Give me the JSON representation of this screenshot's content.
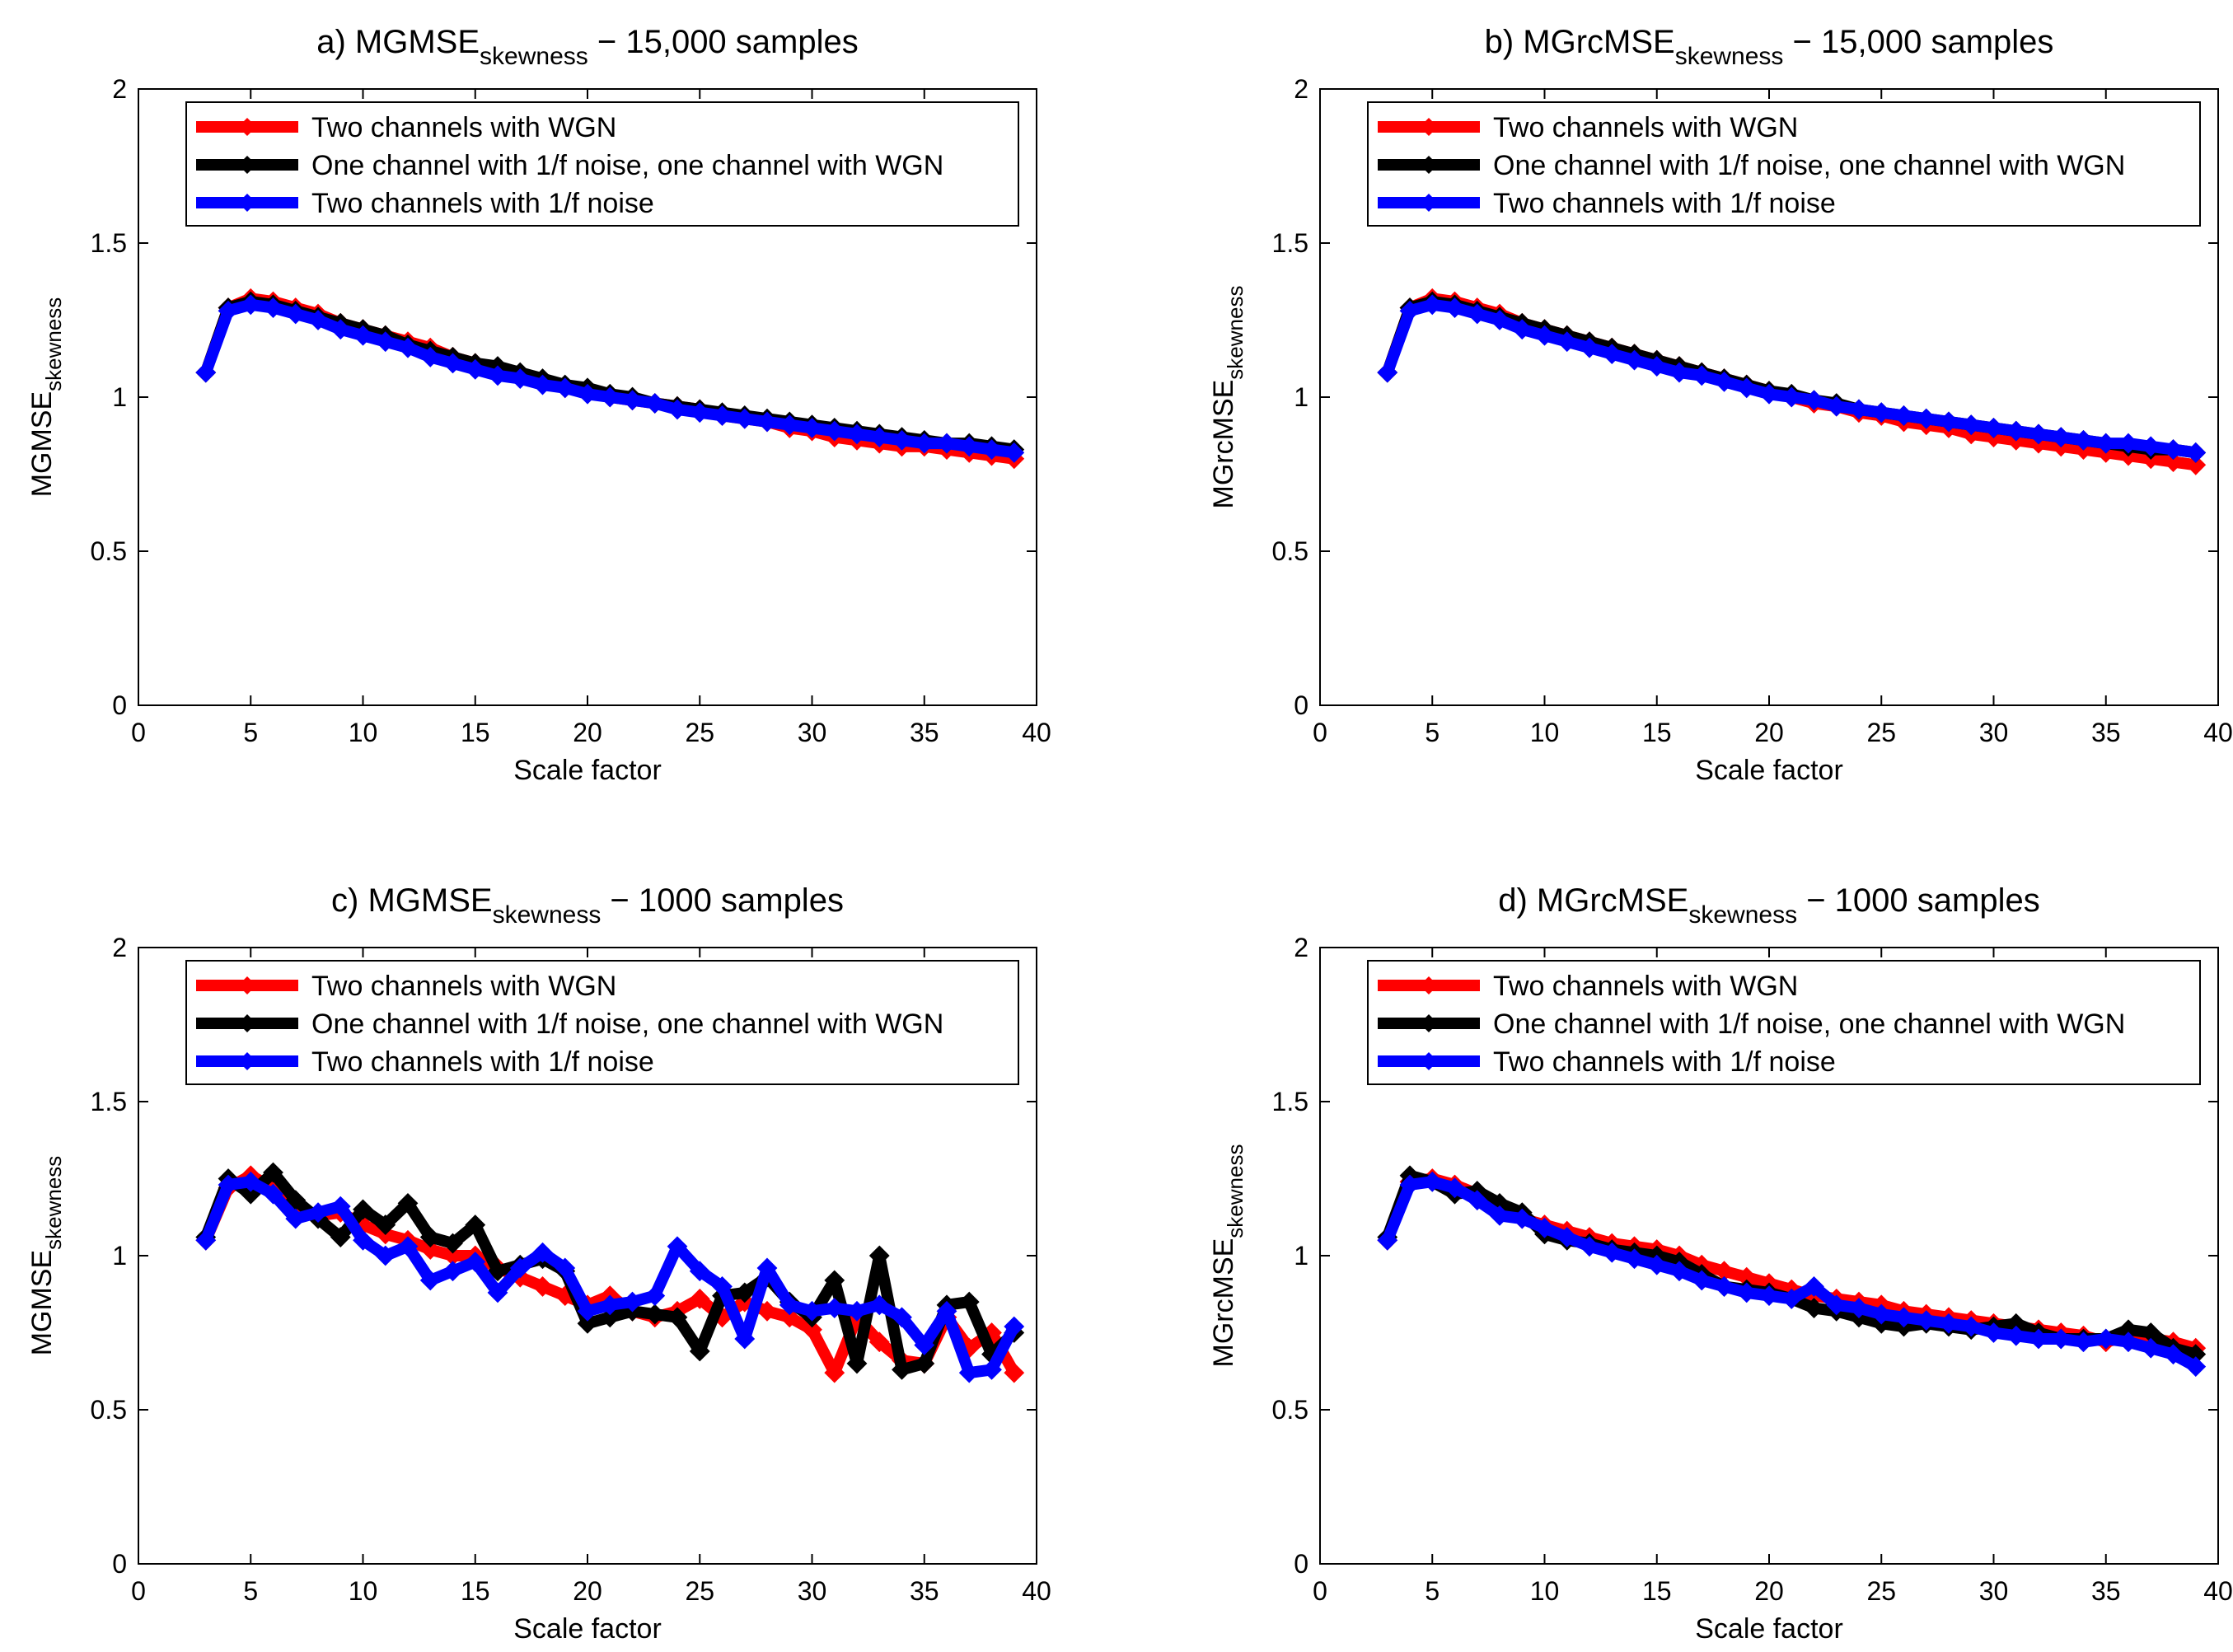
{
  "chart_data": [
    {
      "type": "line",
      "title_prefix": "a) MGMSE",
      "title_subscript": "skewness",
      "title_suffix": " − 15,000 samples",
      "xlabel": "Scale factor",
      "ylabel_main": "MGMSE",
      "ylabel_subscript": "skewness",
      "xlim": [
        0,
        40
      ],
      "ylim": [
        0,
        2
      ],
      "xticks": [
        "0",
        "5",
        "10",
        "15",
        "20",
        "25",
        "30",
        "35",
        "40"
      ],
      "yticks": [
        "0",
        "0.5",
        "1",
        "1.5",
        "2"
      ],
      "legend_position": "top",
      "x": [
        3,
        4,
        5,
        6,
        7,
        8,
        9,
        10,
        11,
        12,
        13,
        14,
        15,
        16,
        17,
        18,
        19,
        20,
        21,
        22,
        23,
        24,
        25,
        26,
        27,
        28,
        29,
        30,
        31,
        32,
        33,
        34,
        35,
        36,
        37,
        38,
        39
      ],
      "series": [
        {
          "name": "Two channels with WGN",
          "color": "#ff0000",
          "values": [
            1.08,
            1.29,
            1.32,
            1.31,
            1.29,
            1.27,
            1.24,
            1.22,
            1.2,
            1.18,
            1.16,
            1.13,
            1.11,
            1.09,
            1.07,
            1.05,
            1.03,
            1.02,
            1.0,
            0.99,
            0.98,
            0.97,
            0.96,
            0.94,
            0.93,
            0.92,
            0.9,
            0.89,
            0.87,
            0.86,
            0.85,
            0.84,
            0.84,
            0.83,
            0.82,
            0.81,
            0.8
          ]
        },
        {
          "name": "One channel with 1/f noise, one channel with WGN",
          "color": "#000000",
          "values": [
            1.08,
            1.29,
            1.31,
            1.3,
            1.28,
            1.26,
            1.24,
            1.22,
            1.2,
            1.17,
            1.15,
            1.13,
            1.11,
            1.1,
            1.08,
            1.06,
            1.04,
            1.03,
            1.01,
            1.0,
            0.98,
            0.97,
            0.96,
            0.95,
            0.94,
            0.93,
            0.92,
            0.91,
            0.9,
            0.89,
            0.88,
            0.87,
            0.86,
            0.85,
            0.85,
            0.84,
            0.83
          ]
        },
        {
          "name": "Two channels with 1/f noise",
          "color": "#0000ff",
          "values": [
            1.08,
            1.28,
            1.3,
            1.29,
            1.27,
            1.25,
            1.22,
            1.2,
            1.18,
            1.16,
            1.13,
            1.11,
            1.09,
            1.07,
            1.06,
            1.04,
            1.03,
            1.01,
            1.0,
            0.99,
            0.98,
            0.96,
            0.95,
            0.94,
            0.93,
            0.92,
            0.91,
            0.9,
            0.89,
            0.88,
            0.87,
            0.86,
            0.85,
            0.85,
            0.84,
            0.83,
            0.82
          ]
        }
      ]
    },
    {
      "type": "line",
      "title_prefix": "b) MGrcMSE",
      "title_subscript": "skewness",
      "title_suffix": " − 15,000 samples",
      "xlabel": "Scale factor",
      "ylabel_main": "MGrcMSE",
      "ylabel_subscript": "skewness",
      "xlim": [
        0,
        40
      ],
      "ylim": [
        0,
        2
      ],
      "xticks": [
        "0",
        "5",
        "10",
        "15",
        "20",
        "25",
        "30",
        "35",
        "40"
      ],
      "yticks": [
        "0",
        "0.5",
        "1",
        "1.5",
        "2"
      ],
      "legend_position": "top",
      "x": [
        3,
        4,
        5,
        6,
        7,
        8,
        9,
        10,
        11,
        12,
        13,
        14,
        15,
        16,
        17,
        18,
        19,
        20,
        21,
        22,
        23,
        24,
        25,
        26,
        27,
        28,
        29,
        30,
        31,
        32,
        33,
        34,
        35,
        36,
        37,
        38,
        39
      ],
      "series": [
        {
          "name": "Two channels with WGN",
          "color": "#ff0000",
          "values": [
            1.08,
            1.29,
            1.32,
            1.31,
            1.29,
            1.27,
            1.24,
            1.22,
            1.2,
            1.18,
            1.16,
            1.14,
            1.12,
            1.1,
            1.08,
            1.06,
            1.04,
            1.02,
            1.0,
            0.98,
            0.97,
            0.95,
            0.94,
            0.92,
            0.91,
            0.9,
            0.88,
            0.87,
            0.86,
            0.85,
            0.84,
            0.83,
            0.82,
            0.81,
            0.8,
            0.79,
            0.78
          ]
        },
        {
          "name": "One channel with 1/f noise, one channel with WGN",
          "color": "#000000",
          "values": [
            1.08,
            1.29,
            1.31,
            1.3,
            1.28,
            1.26,
            1.24,
            1.22,
            1.2,
            1.18,
            1.16,
            1.14,
            1.12,
            1.1,
            1.08,
            1.06,
            1.04,
            1.02,
            1.01,
            0.99,
            0.98,
            0.96,
            0.95,
            0.94,
            0.93,
            0.92,
            0.91,
            0.9,
            0.89,
            0.88,
            0.87,
            0.86,
            0.85,
            0.84,
            0.83,
            0.83,
            0.82
          ]
        },
        {
          "name": "Two channels with 1/f noise",
          "color": "#0000ff",
          "values": [
            1.08,
            1.28,
            1.3,
            1.29,
            1.27,
            1.25,
            1.22,
            1.2,
            1.18,
            1.16,
            1.14,
            1.12,
            1.1,
            1.08,
            1.07,
            1.05,
            1.03,
            1.01,
            1.0,
            0.99,
            0.97,
            0.96,
            0.95,
            0.94,
            0.93,
            0.92,
            0.91,
            0.9,
            0.89,
            0.88,
            0.87,
            0.86,
            0.85,
            0.85,
            0.84,
            0.83,
            0.82
          ]
        }
      ]
    },
    {
      "type": "line",
      "title_prefix": "c) MGMSE",
      "title_subscript": "skewness",
      "title_suffix": " − 1000 samples",
      "xlabel": "Scale factor",
      "ylabel_main": "MGMSE",
      "ylabel_subscript": "skewness",
      "xlim": [
        0,
        40
      ],
      "ylim": [
        0,
        2
      ],
      "xticks": [
        "0",
        "5",
        "10",
        "15",
        "20",
        "25",
        "30",
        "35",
        "40"
      ],
      "yticks": [
        "0",
        "0.5",
        "1",
        "1.5",
        "2"
      ],
      "legend_position": "top",
      "x": [
        3,
        4,
        5,
        6,
        7,
        8,
        9,
        10,
        11,
        12,
        13,
        14,
        15,
        16,
        17,
        18,
        19,
        20,
        21,
        22,
        23,
        24,
        25,
        26,
        27,
        28,
        29,
        30,
        31,
        32,
        33,
        34,
        35,
        36,
        37,
        38,
        39
      ],
      "series": [
        {
          "name": "Two channels with WGN",
          "color": "#ff0000",
          "values": [
            1.05,
            1.22,
            1.26,
            1.22,
            1.15,
            1.13,
            1.14,
            1.1,
            1.07,
            1.05,
            1.02,
            1.0,
            1.0,
            0.96,
            0.93,
            0.9,
            0.87,
            0.84,
            0.87,
            0.82,
            0.8,
            0.82,
            0.86,
            0.8,
            0.85,
            0.82,
            0.8,
            0.76,
            0.62,
            0.8,
            0.72,
            0.66,
            0.65,
            0.8,
            0.7,
            0.75,
            0.62
          ]
        },
        {
          "name": "One channel with 1/f noise, one channel with WGN",
          "color": "#000000",
          "values": [
            1.06,
            1.25,
            1.2,
            1.27,
            1.18,
            1.12,
            1.06,
            1.15,
            1.1,
            1.17,
            1.06,
            1.04,
            1.1,
            0.95,
            0.97,
            0.99,
            0.95,
            0.78,
            0.8,
            0.82,
            0.81,
            0.8,
            0.69,
            0.87,
            0.88,
            0.93,
            0.85,
            0.8,
            0.92,
            0.65,
            1.0,
            0.63,
            0.65,
            0.84,
            0.85,
            0.68,
            0.75
          ]
        },
        {
          "name": "Two channels with 1/f noise",
          "color": "#0000ff",
          "values": [
            1.05,
            1.23,
            1.24,
            1.2,
            1.12,
            1.14,
            1.16,
            1.05,
            1.0,
            1.03,
            0.92,
            0.95,
            0.98,
            0.88,
            0.96,
            1.01,
            0.96,
            0.82,
            0.84,
            0.85,
            0.87,
            1.03,
            0.95,
            0.9,
            0.73,
            0.96,
            0.84,
            0.82,
            0.83,
            0.82,
            0.84,
            0.8,
            0.71,
            0.82,
            0.62,
            0.63,
            0.77
          ]
        }
      ]
    },
    {
      "type": "line",
      "title_prefix": "d) MGrcMSE",
      "title_subscript": "skewness",
      "title_suffix": " − 1000 samples",
      "xlabel": "Scale factor",
      "ylabel_main": "MGrcMSE",
      "ylabel_subscript": "skewness",
      "xlim": [
        0,
        40
      ],
      "ylim": [
        0,
        2
      ],
      "xticks": [
        "0",
        "5",
        "10",
        "15",
        "20",
        "25",
        "30",
        "35",
        "40"
      ],
      "yticks": [
        "0",
        "0.5",
        "1",
        "1.5",
        "2"
      ],
      "legend_position": "top",
      "x": [
        3,
        4,
        5,
        6,
        7,
        8,
        9,
        10,
        11,
        12,
        13,
        14,
        15,
        16,
        17,
        18,
        19,
        20,
        21,
        22,
        23,
        24,
        25,
        26,
        27,
        28,
        29,
        30,
        31,
        32,
        33,
        34,
        35,
        36,
        37,
        38,
        39
      ],
      "series": [
        {
          "name": "Two channels with WGN",
          "color": "#ff0000",
          "values": [
            1.05,
            1.24,
            1.25,
            1.23,
            1.2,
            1.15,
            1.12,
            1.1,
            1.08,
            1.06,
            1.04,
            1.03,
            1.02,
            1.0,
            0.97,
            0.95,
            0.93,
            0.91,
            0.89,
            0.87,
            0.86,
            0.85,
            0.84,
            0.82,
            0.81,
            0.8,
            0.79,
            0.78,
            0.77,
            0.76,
            0.75,
            0.74,
            0.72,
            0.74,
            0.73,
            0.72,
            0.7
          ]
        },
        {
          "name": "One channel with 1/f noise, one channel with WGN",
          "color": "#000000",
          "values": [
            1.06,
            1.26,
            1.24,
            1.2,
            1.21,
            1.17,
            1.14,
            1.07,
            1.05,
            1.04,
            1.02,
            1.01,
            1.0,
            0.98,
            0.94,
            0.9,
            0.89,
            0.88,
            0.86,
            0.83,
            0.82,
            0.8,
            0.78,
            0.77,
            0.78,
            0.77,
            0.76,
            0.77,
            0.78,
            0.75,
            0.73,
            0.73,
            0.73,
            0.76,
            0.75,
            0.7,
            0.68
          ]
        },
        {
          "name": "Two channels with 1/f noise",
          "color": "#0000ff",
          "values": [
            1.05,
            1.23,
            1.24,
            1.22,
            1.18,
            1.13,
            1.12,
            1.09,
            1.06,
            1.03,
            1.01,
            0.99,
            0.97,
            0.95,
            0.92,
            0.9,
            0.88,
            0.87,
            0.86,
            0.9,
            0.84,
            0.83,
            0.81,
            0.8,
            0.79,
            0.78,
            0.77,
            0.75,
            0.74,
            0.73,
            0.73,
            0.72,
            0.73,
            0.72,
            0.7,
            0.68,
            0.64
          ]
        }
      ]
    }
  ]
}
